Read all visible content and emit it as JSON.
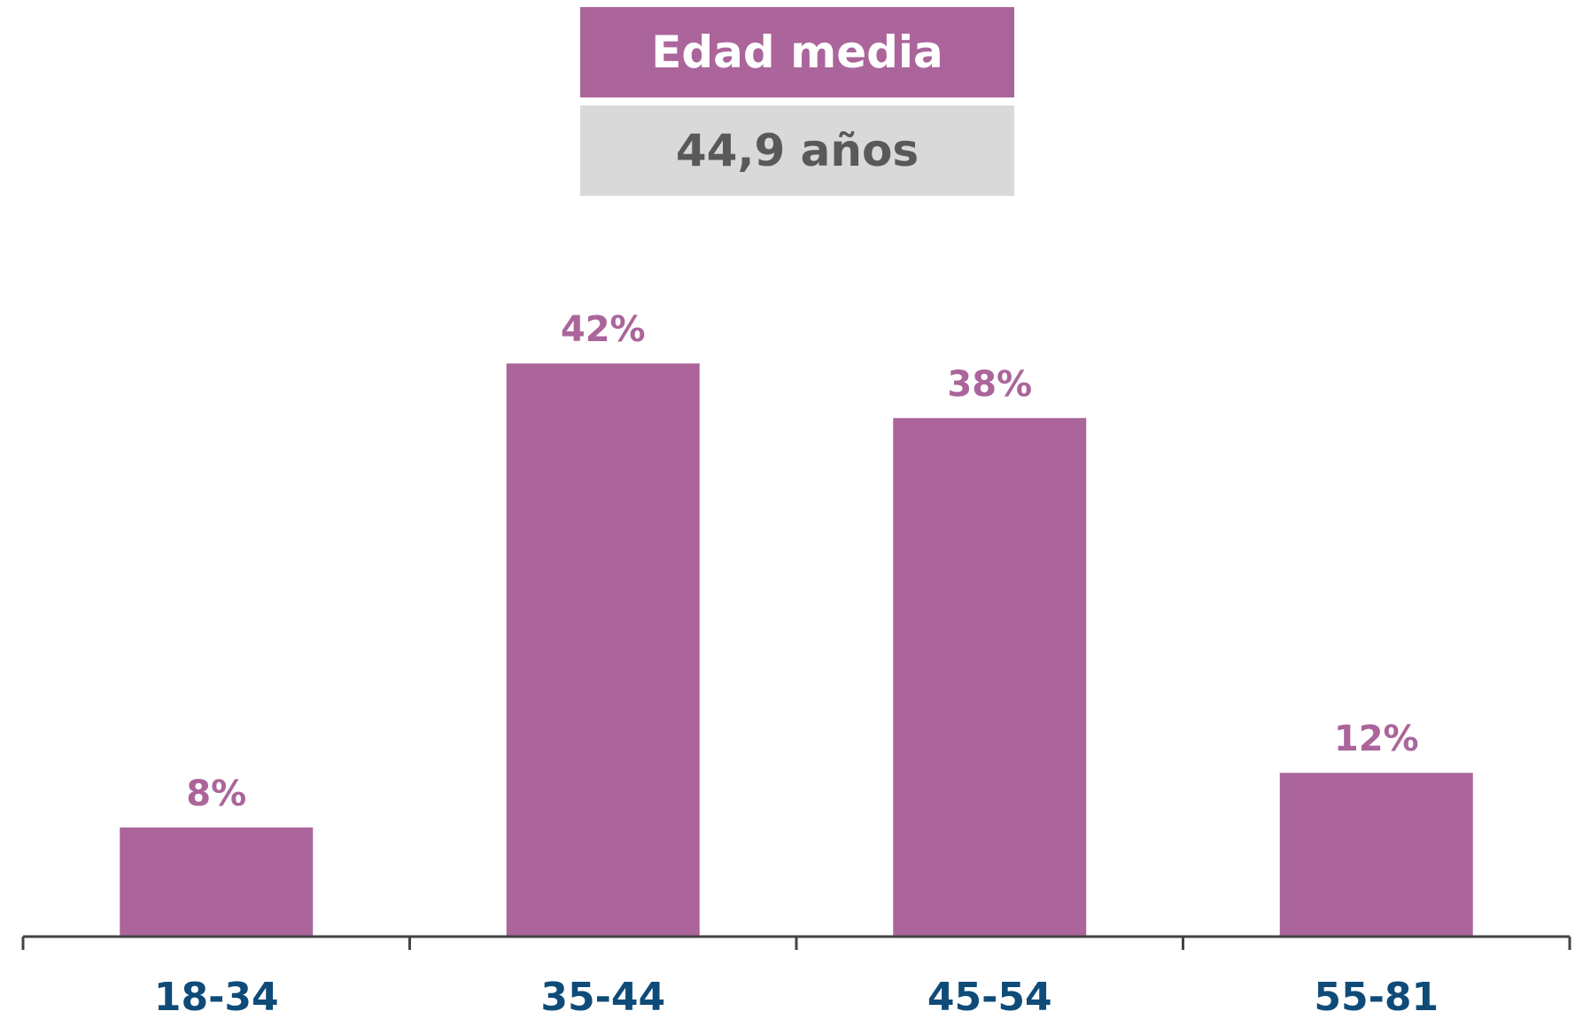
{
  "summary": {
    "label": "Edad media",
    "value": "44,9 años"
  },
  "colors": {
    "bar": "#ab659b",
    "value_label": "#ab659b",
    "category_label": "#0f4b78",
    "axis": "#444444",
    "summary_header_bg": "#ab659b",
    "summary_header_text": "#ffffff",
    "summary_value_bg": "#d9d9d9",
    "summary_value_text": "#595959"
  },
  "chart_data": {
    "type": "bar",
    "categories": [
      "18-34",
      "35-44",
      "45-54",
      "55-81"
    ],
    "values": [
      8,
      42,
      38,
      12
    ],
    "value_labels": [
      "8%",
      "42%",
      "38%",
      "12%"
    ],
    "ylim": [
      0,
      50
    ],
    "grid": false,
    "legend": "none"
  }
}
